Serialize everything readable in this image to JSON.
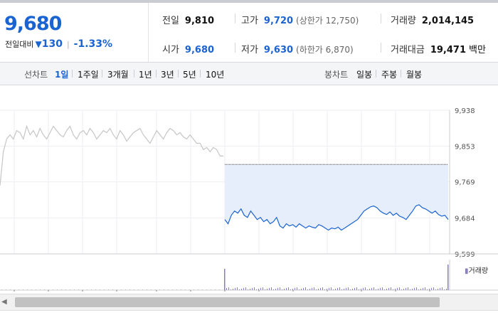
{
  "quote": {
    "current_price": "9,680",
    "change_label": "전일대비",
    "change_arrow": "▼",
    "change_amount": "130",
    "change_rate": "-1.33%",
    "prev_close_label": "전일",
    "prev_close": "9,810",
    "high_label": "고가",
    "high": "9,720",
    "upper_limit_text": "(상한가 12,750)",
    "volume_label": "거래량",
    "volume": "2,014,145",
    "open_label": "시가",
    "open": "9,680",
    "low_label": "저가",
    "low": "9,630",
    "lower_limit_text": "(하한가 6,870)",
    "turnover_label": "거래대금",
    "turnover": "19,471",
    "turnover_unit": "백만"
  },
  "tabs": {
    "line_chart_label": "선차트",
    "periods": [
      "1일",
      "1주일",
      "3개월",
      "1년",
      "3년",
      "5년",
      "10년"
    ],
    "active_period": "1일",
    "candle_chart_label": "봉차트",
    "candles": [
      "일봉",
      "주봉",
      "월봉"
    ]
  },
  "colors": {
    "price_blue": "#1a63d3",
    "prev_day_line": "#c6c6c6",
    "fill": "#e6eefb",
    "volume_bar": "#8a7fc0"
  },
  "chart_data": {
    "type": "line",
    "y_ticks": [
      "9,938",
      "9,853",
      "9,769",
      "9,684",
      "9,599"
    ],
    "ylim": [
      9599,
      9938
    ],
    "reference_price": 9810,
    "series": [
      {
        "values": [
          9760,
          9840,
          9870,
          9880,
          9870,
          9890,
          9885,
          9870,
          9900,
          9880,
          9890,
          9875,
          9895,
          9880,
          9870,
          9885,
          9900,
          9890,
          9880,
          9875,
          9890,
          9900,
          9880,
          9870,
          9885,
          9890,
          9880,
          9895,
          9885,
          9870,
          9880,
          9890,
          9885,
          9895,
          9880,
          9870,
          9890,
          9880,
          9865,
          9875,
          9885,
          9890,
          9895,
          9880,
          9870,
          9860,
          9875,
          9890,
          9880,
          9870,
          9885,
          9895,
          9890,
          9880,
          9885,
          9875,
          9870,
          9880,
          9870,
          9860,
          9860,
          9845,
          9850,
          9840,
          9850,
          9845,
          9830,
          9830
        ]
      },
      {
        "values": [
          9680,
          9670,
          9690,
          9700,
          9695,
          9705,
          9690,
          9685,
          9700,
          9690,
          9680,
          9685,
          9675,
          9680,
          9670,
          9675,
          9685,
          9665,
          9660,
          9670,
          9665,
          9668,
          9662,
          9670,
          9665,
          9660,
          9665,
          9662,
          9660,
          9668,
          9665,
          9660,
          9655,
          9660,
          9658,
          9662,
          9655,
          9660,
          9665,
          9670,
          9675,
          9680,
          9690,
          9700,
          9705,
          9710,
          9712,
          9708,
          9700,
          9695,
          9692,
          9698,
          9690,
          9695,
          9688,
          9685,
          9680,
          9690,
          9700,
          9712,
          9715,
          9708,
          9705,
          9700,
          9695,
          9700,
          9692,
          9688,
          9690,
          9680
        ]
      }
    ],
    "volume_legend": "거래량"
  }
}
